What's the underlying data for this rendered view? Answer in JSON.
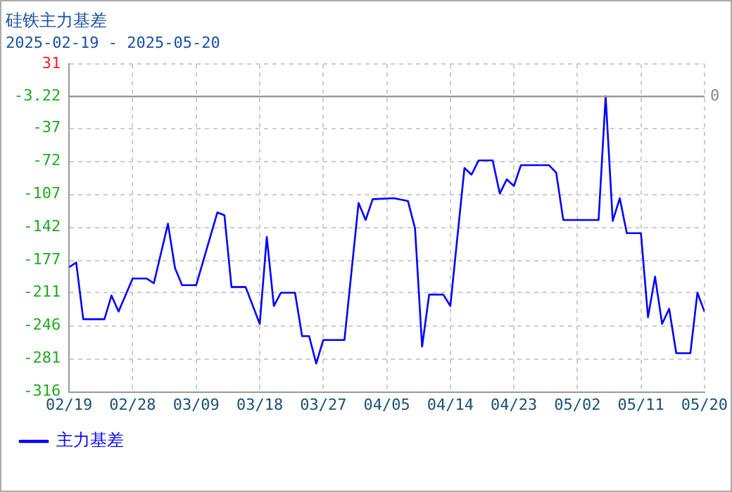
{
  "chart_data": {
    "type": "line",
    "title": "硅铁主力基差",
    "subtitle": "2025-02-19 - 2025-05-20",
    "x": [
      "2025-02-19",
      "2025-02-20",
      "2025-02-21",
      "2025-02-24",
      "2025-02-25",
      "2025-02-26",
      "2025-02-28",
      "2025-03-02",
      "2025-03-03",
      "2025-03-05",
      "2025-03-06",
      "2025-03-07",
      "2025-03-09",
      "2025-03-12",
      "2025-03-13",
      "2025-03-14",
      "2025-03-16",
      "2025-03-18",
      "2025-03-19",
      "2025-03-20",
      "2025-03-21",
      "2025-03-23",
      "2025-03-24",
      "2025-03-25",
      "2025-03-26",
      "2025-03-27",
      "2025-03-30",
      "2025-04-01",
      "2025-04-02",
      "2025-04-03",
      "2025-04-06",
      "2025-04-08",
      "2025-04-09",
      "2025-04-10",
      "2025-04-11",
      "2025-04-13",
      "2025-04-14",
      "2025-04-16",
      "2025-04-17",
      "2025-04-18",
      "2025-04-20",
      "2025-04-21",
      "2025-04-22",
      "2025-04-23",
      "2025-04-24",
      "2025-04-28",
      "2025-04-29",
      "2025-04-30",
      "2025-05-05",
      "2025-05-06",
      "2025-05-07",
      "2025-05-08",
      "2025-05-09",
      "2025-05-11",
      "2025-05-12",
      "2025-05-13",
      "2025-05-14",
      "2025-05-15",
      "2025-05-16",
      "2025-05-18",
      "2025-05-19",
      "2025-05-20"
    ],
    "series": [
      {
        "name": "主力基差",
        "color": "#0000ff",
        "values": [
          -184,
          -179,
          -239,
          -239,
          -214,
          -231,
          -196,
          -196,
          -201,
          -138,
          -185,
          -203,
          -203,
          -126,
          -129,
          -205,
          -205,
          -244,
          -152,
          -225,
          -211,
          -211,
          -257,
          -257,
          -286,
          -261,
          -261,
          -116,
          -134,
          -112,
          -111,
          -114,
          -143,
          -268,
          -213,
          -213,
          -225,
          -79,
          -86,
          -71,
          -71,
          -106,
          -91,
          -98,
          -76,
          -76,
          -84,
          -134,
          -134,
          -3,
          -135,
          -111,
          -148,
          -148,
          -237,
          -194,
          -244,
          -228,
          -275,
          -275,
          -211,
          -231
        ]
      }
    ],
    "xlim": [
      "2025-02-19",
      "2025-05-20"
    ],
    "xticks": [
      {
        "value": "2025-02-19",
        "label": "02/19"
      },
      {
        "value": "2025-02-28",
        "label": "02/28"
      },
      {
        "value": "2025-03-09",
        "label": "03/09"
      },
      {
        "value": "2025-03-18",
        "label": "03/18"
      },
      {
        "value": "2025-03-27",
        "label": "03/27"
      },
      {
        "value": "2025-04-05",
        "label": "04/05"
      },
      {
        "value": "2025-04-14",
        "label": "04/14"
      },
      {
        "value": "2025-04-23",
        "label": "04/23"
      },
      {
        "value": "2025-05-02",
        "label": "05/02"
      },
      {
        "value": "2025-05-11",
        "label": "05/11"
      },
      {
        "value": "2025-05-20",
        "label": "05/20"
      }
    ],
    "ylim": [
      -316,
      31
    ],
    "yticks": [
      31,
      -3.22,
      -37,
      -72,
      -107,
      -142,
      -177,
      -211,
      -246,
      -281,
      -316
    ],
    "ref_lines": [
      {
        "axis": "y",
        "value": -3.22,
        "color": "#999999"
      }
    ],
    "annotations": [
      "0"
    ],
    "grid": true,
    "legend": "bottom left",
    "marker": "none",
    "line_style": "solid"
  }
}
